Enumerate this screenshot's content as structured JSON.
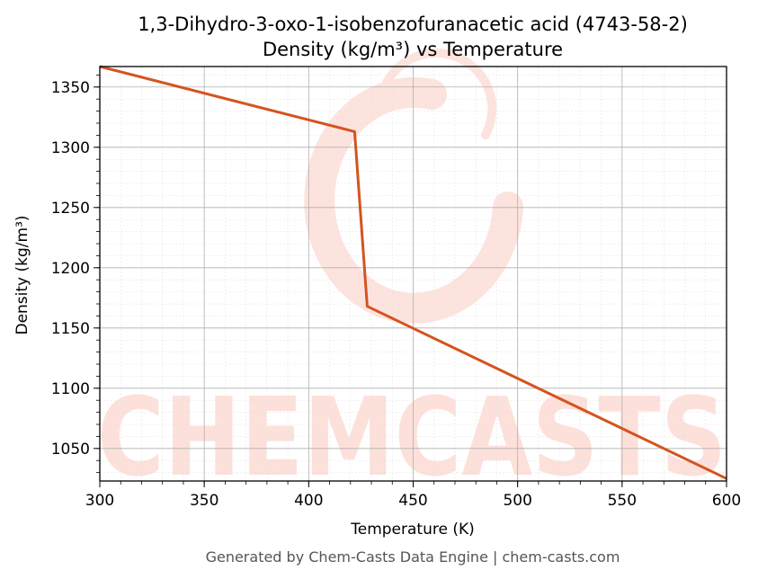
{
  "chart_data": {
    "type": "line",
    "title_line1": "1,3-Dihydro-3-oxo-1-isobenzofuranacetic acid (4743-58-2)",
    "title_line2": "Density (kg/m³) vs Temperature",
    "xlabel": "Temperature (K)",
    "ylabel": "Density (kg/m³)",
    "xlim": [
      300,
      600
    ],
    "ylim": [
      1023,
      1367
    ],
    "xticks": [
      300,
      350,
      400,
      450,
      500,
      550,
      600
    ],
    "yticks": [
      1050,
      1100,
      1150,
      1200,
      1250,
      1300,
      1350
    ],
    "grid": true,
    "series": [
      {
        "x": [
          300,
          422,
          428,
          600
        ],
        "y": [
          1367,
          1313,
          1168,
          1025
        ]
      }
    ]
  },
  "colors": {
    "line": "#d4541f",
    "watermark": "#fde0da",
    "grid_major": "#b0b0b0",
    "grid_minor": "#e0e0e0"
  },
  "watermark": "CHEMCASTS",
  "footer": "Generated by Chem-Casts Data Engine | chem-casts.com"
}
